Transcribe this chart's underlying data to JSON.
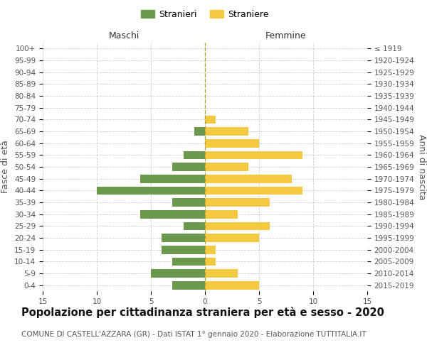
{
  "age_groups": [
    "0-4",
    "5-9",
    "10-14",
    "15-19",
    "20-24",
    "25-29",
    "30-34",
    "35-39",
    "40-44",
    "45-49",
    "50-54",
    "55-59",
    "60-64",
    "65-69",
    "70-74",
    "75-79",
    "80-84",
    "85-89",
    "90-94",
    "95-99",
    "100+"
  ],
  "birth_years": [
    "2015-2019",
    "2010-2014",
    "2005-2009",
    "2000-2004",
    "1995-1999",
    "1990-1994",
    "1985-1989",
    "1980-1984",
    "1975-1979",
    "1970-1974",
    "1965-1969",
    "1960-1964",
    "1955-1959",
    "1950-1954",
    "1945-1949",
    "1940-1944",
    "1935-1939",
    "1930-1934",
    "1925-1929",
    "1920-1924",
    "≤ 1919"
  ],
  "maschi": [
    3,
    5,
    3,
    4,
    4,
    2,
    6,
    3,
    10,
    6,
    3,
    2,
    0,
    1,
    0,
    0,
    0,
    0,
    0,
    0,
    0
  ],
  "femmine": [
    5,
    3,
    1,
    1,
    5,
    6,
    3,
    6,
    9,
    8,
    4,
    9,
    5,
    4,
    1,
    0,
    0,
    0,
    0,
    0,
    0
  ],
  "maschi_color": "#6a994e",
  "femmine_color": "#f5c842",
  "title": "Popolazione per cittadinanza straniera per età e sesso - 2020",
  "subtitle": "COMUNE DI CASTELL'AZZARA (GR) - Dati ISTAT 1° gennaio 2020 - Elaborazione TUTTITALIA.IT",
  "xlabel_left": "Maschi",
  "xlabel_right": "Femmine",
  "ylabel_left": "Fasce di età",
  "ylabel_right": "Anni di nascita",
  "xlim": 15,
  "legend_stranieri": "Stranieri",
  "legend_straniere": "Straniere",
  "bg_color": "#ffffff",
  "grid_color": "#cccccc",
  "bar_height": 0.7,
  "axis_label_fontsize": 9,
  "tick_fontsize": 7.5,
  "title_fontsize": 10.5,
  "subtitle_fontsize": 7.5
}
